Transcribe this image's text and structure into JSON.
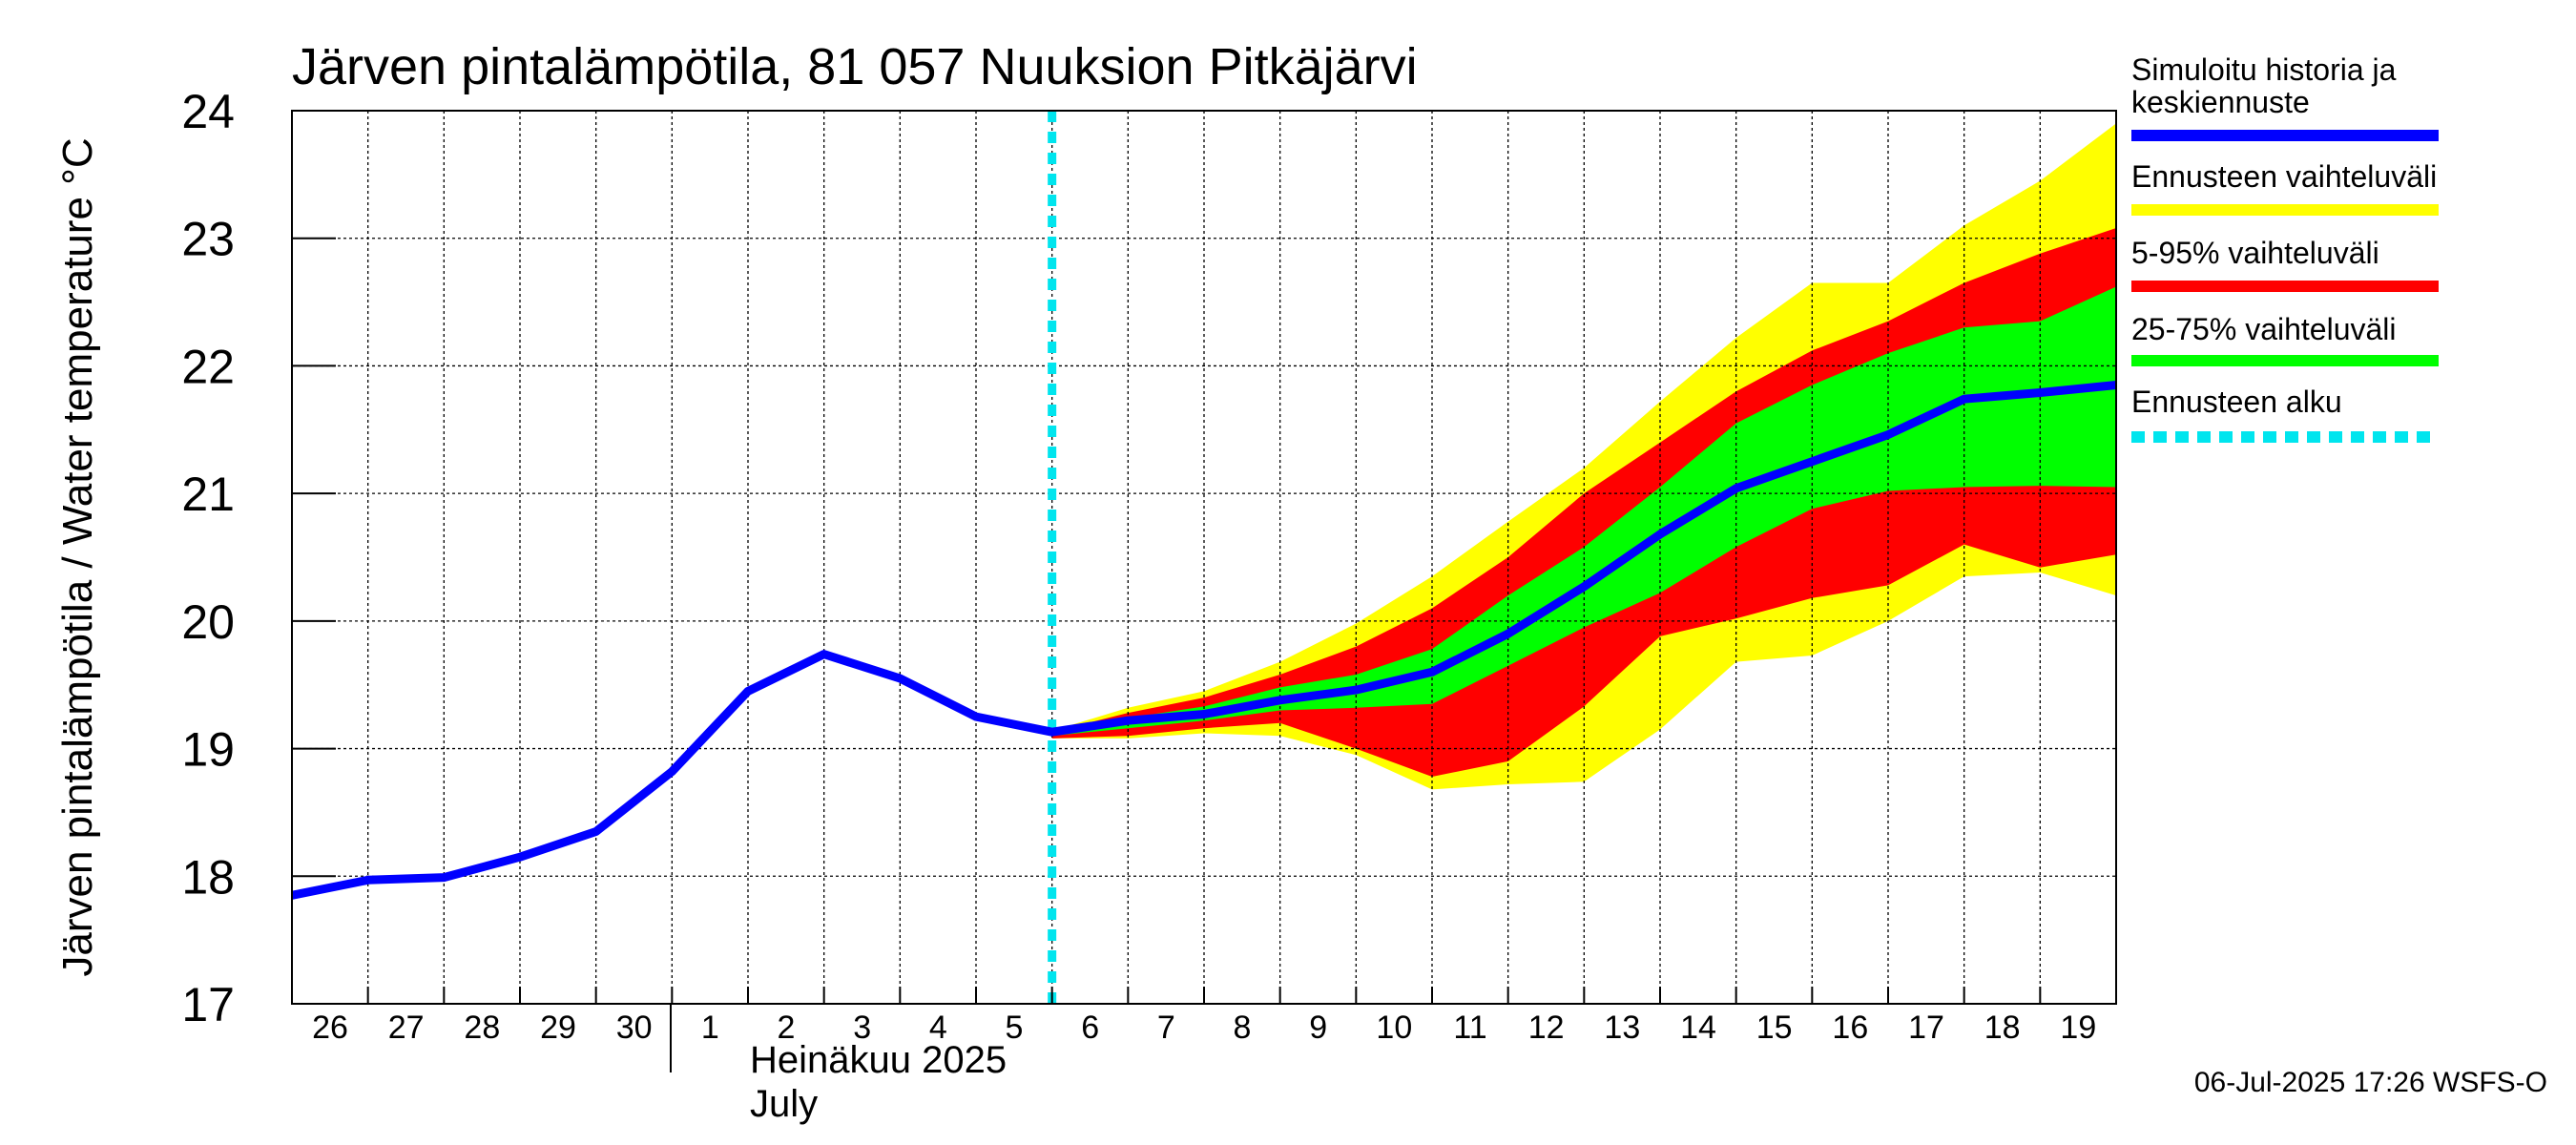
{
  "chart_data": {
    "type": "area",
    "title": "Järven pintalämpötila, 81 057 Nuuksion Pitkäjärvi",
    "ylabel": "Järven pintalämpötila / Water temperature °C",
    "ylim": [
      17,
      24
    ],
    "yticks": [
      "17",
      "18",
      "19",
      "20",
      "21",
      "22",
      "23",
      "24"
    ],
    "xlim": [
      0,
      24
    ],
    "xticks": [
      {
        "x": 0,
        "label": "26"
      },
      {
        "x": 1,
        "label": "27"
      },
      {
        "x": 2,
        "label": "28"
      },
      {
        "x": 3,
        "label": "29"
      },
      {
        "x": 4,
        "label": "30"
      },
      {
        "x": 5,
        "label": "1"
      },
      {
        "x": 6,
        "label": "2"
      },
      {
        "x": 7,
        "label": "3"
      },
      {
        "x": 8,
        "label": "4"
      },
      {
        "x": 9,
        "label": "5"
      },
      {
        "x": 10,
        "label": "6"
      },
      {
        "x": 11,
        "label": "7"
      },
      {
        "x": 12,
        "label": "8"
      },
      {
        "x": 13,
        "label": "9"
      },
      {
        "x": 14,
        "label": "10"
      },
      {
        "x": 15,
        "label": "11"
      },
      {
        "x": 16,
        "label": "12"
      },
      {
        "x": 17,
        "label": "13"
      },
      {
        "x": 18,
        "label": "14"
      },
      {
        "x": 19,
        "label": "15"
      },
      {
        "x": 20,
        "label": "16"
      },
      {
        "x": 21,
        "label": "17"
      },
      {
        "x": 22,
        "label": "18"
      },
      {
        "x": 23,
        "label": "19"
      }
    ],
    "month_boundary_x": 5,
    "month_label_fi": "Heinäkuu  2025",
    "month_label_en": "July",
    "forecast_start_x": 10,
    "grid": true,
    "legend_position": "right",
    "colors": {
      "median": "#0000ff",
      "full_range": "#ffff00",
      "p5_95": "#ff0000",
      "p25_75": "#00ff00",
      "forecast_start": "#00e5ee"
    },
    "series": [
      {
        "name": "Simuloitu historia ja keskiennuste",
        "role": "median",
        "x": [
          0,
          1,
          2,
          3,
          4,
          5,
          6,
          7,
          8,
          9,
          10,
          11,
          12,
          13,
          14,
          15,
          16,
          17,
          18,
          19,
          20,
          21,
          22,
          23,
          24
        ],
        "y": [
          17.85,
          17.97,
          17.99,
          18.15,
          18.35,
          18.82,
          19.45,
          19.74,
          19.55,
          19.25,
          19.13,
          19.22,
          19.27,
          19.38,
          19.46,
          19.6,
          19.9,
          20.27,
          20.68,
          21.04,
          21.25,
          21.46,
          21.74,
          21.79,
          21.85
        ]
      },
      {
        "name": "Ennusteen vaihteluväli",
        "role": "full_range",
        "x": [
          10,
          11,
          12,
          13,
          14,
          15,
          16,
          17,
          18,
          19,
          20,
          21,
          22,
          23,
          24
        ],
        "low": [
          19.08,
          19.08,
          19.12,
          19.1,
          18.95,
          18.68,
          18.72,
          18.74,
          19.15,
          19.68,
          19.73,
          20.0,
          20.35,
          20.38,
          20.2
        ],
        "high": [
          19.14,
          19.32,
          19.45,
          19.68,
          19.98,
          20.35,
          20.78,
          21.2,
          21.72,
          22.22,
          22.65,
          22.65,
          23.1,
          23.45,
          23.9
        ]
      },
      {
        "name": "5-95% vaihteluväli",
        "role": "p5_95",
        "x": [
          10,
          11,
          12,
          13,
          14,
          15,
          16,
          17,
          18,
          19,
          20,
          21,
          22,
          23,
          24
        ],
        "low": [
          19.08,
          19.1,
          19.16,
          19.2,
          19.0,
          18.78,
          18.9,
          19.33,
          19.88,
          20.02,
          20.18,
          20.28,
          20.6,
          20.42,
          20.52
        ],
        "high": [
          19.13,
          19.28,
          19.4,
          19.58,
          19.8,
          20.1,
          20.5,
          21.0,
          21.4,
          21.8,
          22.12,
          22.35,
          22.65,
          22.88,
          23.08
        ]
      },
      {
        "name": "25-75% vaihteluväli",
        "role": "p25_75",
        "x": [
          10,
          11,
          12,
          13,
          14,
          15,
          16,
          17,
          18,
          19,
          20,
          21,
          22,
          23,
          24
        ],
        "low": [
          19.1,
          19.16,
          19.22,
          19.3,
          19.32,
          19.35,
          19.65,
          19.95,
          20.22,
          20.58,
          20.88,
          21.02,
          21.05,
          21.06,
          21.05
        ],
        "high": [
          19.12,
          19.24,
          19.33,
          19.48,
          19.58,
          19.78,
          20.2,
          20.58,
          21.05,
          21.55,
          21.85,
          22.1,
          22.3,
          22.35,
          22.62
        ]
      },
      {
        "name": "Ennusteen alku",
        "role": "forecast_start"
      }
    ]
  },
  "footer": {
    "timestamp": "06-Jul-2025 17:26 WSFS-O"
  }
}
